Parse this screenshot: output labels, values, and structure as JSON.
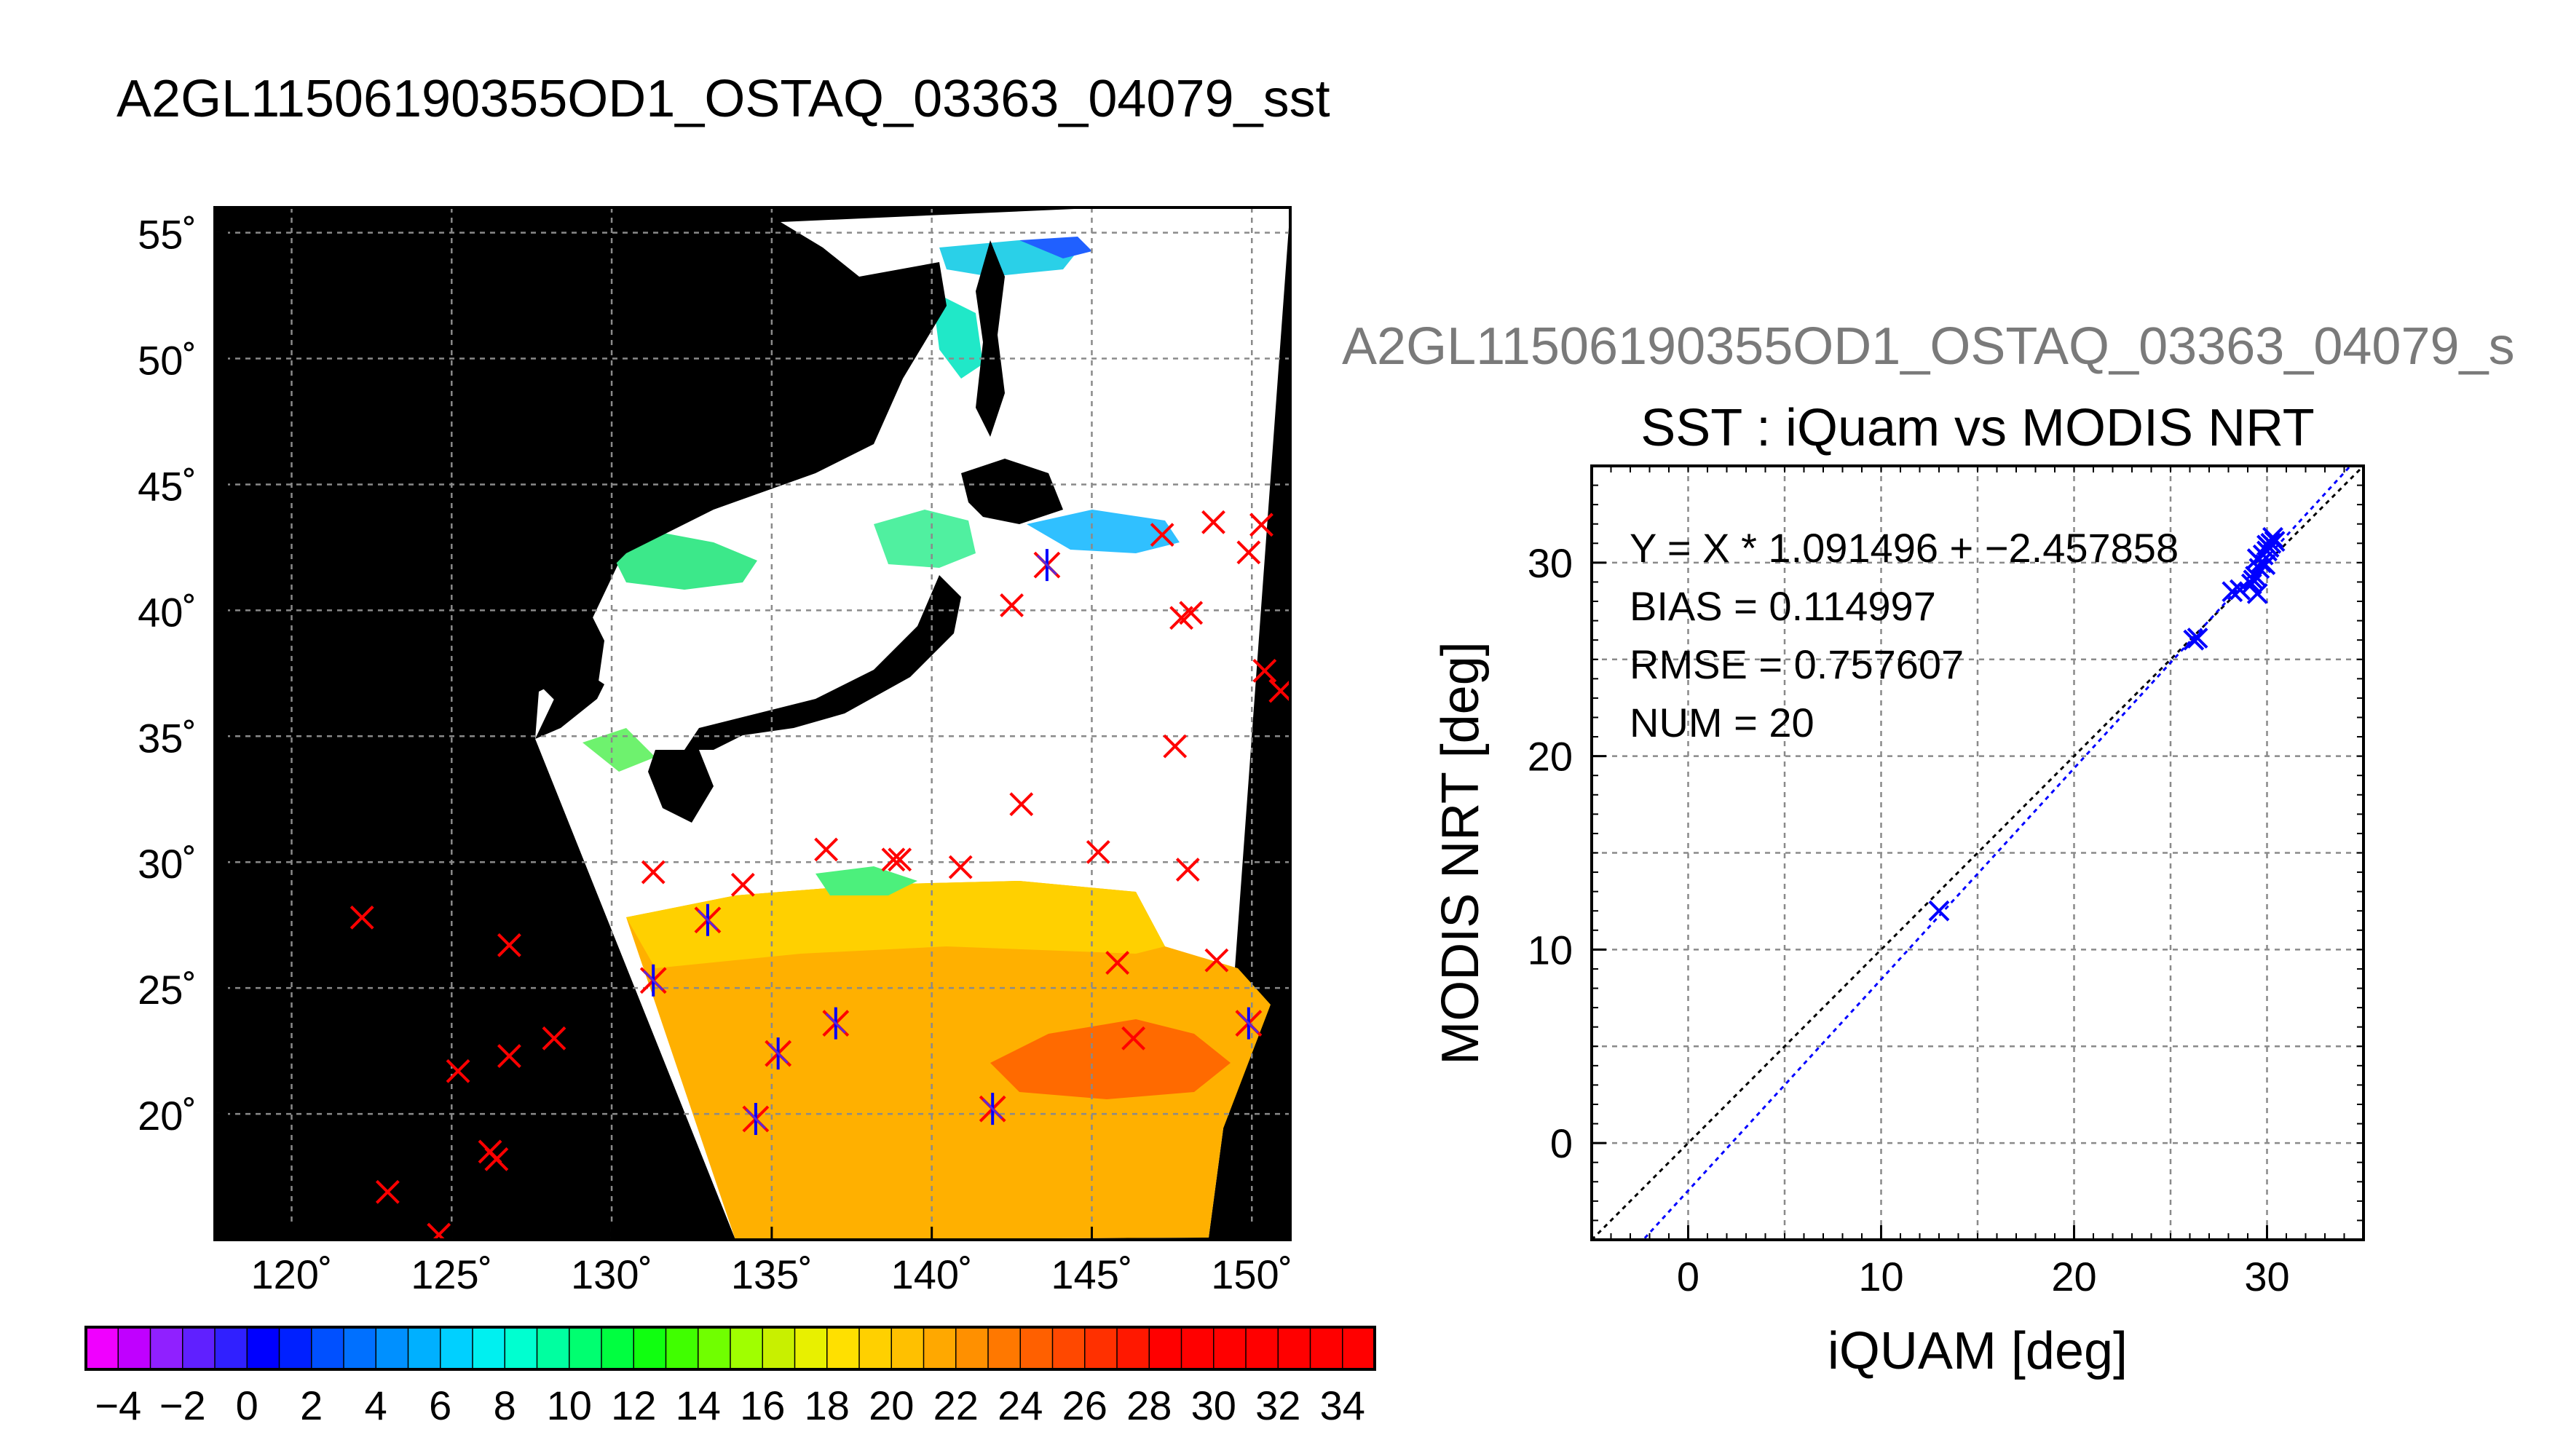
{
  "header": {
    "main_title": "A2GL11506190355OD1_OSTAQ_03363_04079_sst",
    "right_title": "A2GL11506190355OD1_OSTAQ_03363_04079_s"
  },
  "chart_data": [
    {
      "type": "heatmap",
      "description_type": "map",
      "title": "",
      "lat_ticks": [
        55,
        50,
        45,
        40,
        35,
        30,
        25,
        20
      ],
      "lat_tick_labels": [
        "55˚",
        "50˚",
        "45˚",
        "40˚",
        "35˚",
        "30˚",
        "25˚",
        "20˚"
      ],
      "lon_ticks": [
        120,
        125,
        130,
        135,
        140,
        145,
        150
      ],
      "lon_tick_labels": [
        "120˚",
        "125˚",
        "130˚",
        "135˚",
        "140˚",
        "145˚",
        "150˚"
      ],
      "xlim": [
        117.6,
        151.2
      ],
      "ylim": [
        15,
        56
      ],
      "grid": true,
      "colors": {
        "land": "#000000",
        "cloud": "#ffffff",
        "marker_out": "#ff0000",
        "marker_in_cross": "#0000ff"
      },
      "markers_x": [
        {
          "lon": 122.2,
          "lat": 27.8
        },
        {
          "lon": 123.0,
          "lat": 16.9
        },
        {
          "lon": 124.6,
          "lat": 15.2
        },
        {
          "lon": 125.2,
          "lat": 21.7
        },
        {
          "lon": 126.2,
          "lat": 18.5
        },
        {
          "lon": 126.4,
          "lat": 18.2
        },
        {
          "lon": 126.8,
          "lat": 22.3
        },
        {
          "lon": 126.8,
          "lat": 26.7
        },
        {
          "lon": 128.2,
          "lat": 23.0
        },
        {
          "lon": 131.3,
          "lat": 29.6
        },
        {
          "lon": 134.1,
          "lat": 29.1
        },
        {
          "lon": 136.7,
          "lat": 30.5
        },
        {
          "lon": 138.8,
          "lat": 30.1
        },
        {
          "lon": 139.0,
          "lat": 30.1
        },
        {
          "lon": 140.9,
          "lat": 29.8
        },
        {
          "lon": 142.5,
          "lat": 40.2
        },
        {
          "lon": 142.8,
          "lat": 32.3
        },
        {
          "lon": 145.2,
          "lat": 30.4
        },
        {
          "lon": 145.8,
          "lat": 26.0
        },
        {
          "lon": 146.3,
          "lat": 23.0
        },
        {
          "lon": 147.2,
          "lat": 43.0
        },
        {
          "lon": 147.6,
          "lat": 34.6
        },
        {
          "lon": 147.8,
          "lat": 39.7
        },
        {
          "lon": 148.1,
          "lat": 39.9
        },
        {
          "lon": 148.0,
          "lat": 29.7
        },
        {
          "lon": 148.8,
          "lat": 43.5
        },
        {
          "lon": 148.9,
          "lat": 26.1
        },
        {
          "lon": 149.9,
          "lat": 42.3
        },
        {
          "lon": 150.3,
          "lat": 43.4
        },
        {
          "lon": 150.4,
          "lat": 37.6
        },
        {
          "lon": 150.9,
          "lat": 36.8
        }
      ],
      "markers_matched": [
        {
          "lon": 131.3,
          "lat": 25.3
        },
        {
          "lon": 133.0,
          "lat": 27.7
        },
        {
          "lon": 134.5,
          "lat": 19.8
        },
        {
          "lon": 135.2,
          "lat": 22.4
        },
        {
          "lon": 137.0,
          "lat": 23.6
        },
        {
          "lon": 141.9,
          "lat": 20.2
        },
        {
          "lon": 143.6,
          "lat": 41.8
        },
        {
          "lon": 149.9,
          "lat": 23.6
        }
      ]
    },
    {
      "type": "heatmap",
      "description_type": "colorbar",
      "min": -5,
      "max": 35,
      "step": 1,
      "tick_values": [
        -4,
        -2,
        0,
        2,
        4,
        6,
        8,
        10,
        12,
        14,
        16,
        18,
        20,
        22,
        24,
        26,
        28,
        30,
        32,
        34
      ],
      "tick_labels": [
        "−4",
        "−2",
        "0",
        "2",
        "4",
        "6",
        "8",
        "10",
        "12",
        "14",
        "16",
        "18",
        "20",
        "22",
        "24",
        "26",
        "28",
        "30",
        "32",
        "34"
      ]
    },
    {
      "type": "scatter",
      "title": "SST : iQuam vs MODIS NRT",
      "xlabel": "iQUAM [deg]",
      "ylabel": "MODIS NRT [deg]",
      "xlim": [
        -5,
        35
      ],
      "ylim": [
        -5,
        35
      ],
      "x_ticks": [
        0,
        10,
        20,
        30
      ],
      "y_ticks": [
        0,
        10,
        20,
        30
      ],
      "grid": true,
      "stats": {
        "fit": "Y = X * 1.091496 + −2.457858",
        "bias": "BIAS = 0.114997",
        "rmse": "RMSE = 0.757607",
        "num": "NUM = 20"
      },
      "fit_slope": 1.091496,
      "fit_intercept": -2.457858,
      "point_color": "#0000ff",
      "x": [
        13.0,
        26.2,
        26.4,
        28.2,
        28.6,
        29.2,
        29.4,
        29.5,
        29.6,
        29.7,
        29.8,
        30.0,
        30.1,
        30.2,
        30.3,
        29.3,
        29.9,
        30.4,
        29.5,
        30.0
      ],
      "y": [
        12.0,
        26.0,
        26.1,
        28.5,
        28.6,
        28.9,
        29.3,
        28.4,
        29.7,
        30.0,
        30.4,
        30.6,
        30.8,
        31.0,
        31.3,
        29.1,
        29.9,
        31.1,
        30.2,
        30.9
      ]
    }
  ]
}
